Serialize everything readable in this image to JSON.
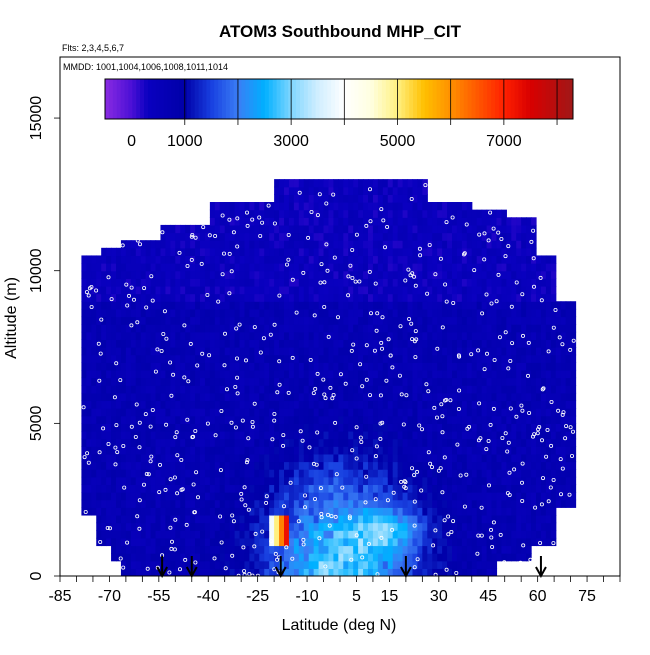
{
  "chart_data": {
    "type": "heatmap",
    "title": "ATOM3 Southbound MHP_CIT",
    "subtitle_flights": "Flts: 2,3,4,5,6,7",
    "subtitle_dates": "MMDD: 1001,1004,1006,1008,1011,1014",
    "xlabel": "Latitude (deg N)",
    "ylabel": "Altitude (m)",
    "xlim": [
      -85,
      85
    ],
    "ylim": [
      0,
      17000
    ],
    "x_ticks": [
      -85,
      -70,
      -55,
      -40,
      -25,
      -10,
      5,
      15,
      30,
      45,
      60,
      75
    ],
    "x_minor_step": 5,
    "y_ticks": [
      0,
      5000,
      10000,
      15000
    ],
    "colorbar": {
      "range": [
        -500,
        8300
      ],
      "ticks": [
        0,
        1000,
        3000,
        5000,
        7000
      ],
      "band_edges": [
        1000,
        2000,
        3000,
        4000,
        5000,
        6000,
        7000,
        8000
      ],
      "stops": [
        {
          "v": -500,
          "c": "#8a2be2"
        },
        {
          "v": 0,
          "c": "#4b10d6"
        },
        {
          "v": 300,
          "c": "#0a00c0"
        },
        {
          "v": 1000,
          "c": "#0000a8"
        },
        {
          "v": 1500,
          "c": "#1840e0"
        },
        {
          "v": 2000,
          "c": "#3a7df5"
        },
        {
          "v": 2500,
          "c": "#00b0ff"
        },
        {
          "v": 3000,
          "c": "#7fd6ff"
        },
        {
          "v": 3500,
          "c": "#d0eeff"
        },
        {
          "v": 4000,
          "c": "#ffffff"
        },
        {
          "v": 4500,
          "c": "#ffffe0"
        },
        {
          "v": 5000,
          "c": "#fff080"
        },
        {
          "v": 5500,
          "c": "#ffc000"
        },
        {
          "v": 6000,
          "c": "#ff9000"
        },
        {
          "v": 7000,
          "c": "#ff2000"
        },
        {
          "v": 7500,
          "c": "#d80000"
        },
        {
          "v": 8300,
          "c": "#a01818"
        }
      ]
    },
    "profile_arrows_lat": [
      -54,
      -45,
      -18,
      20,
      61
    ],
    "high_value_feature": {
      "lat_range": [
        -22,
        -16
      ],
      "alt_range": [
        1000,
        1900
      ],
      "max_value": 8000
    }
  }
}
